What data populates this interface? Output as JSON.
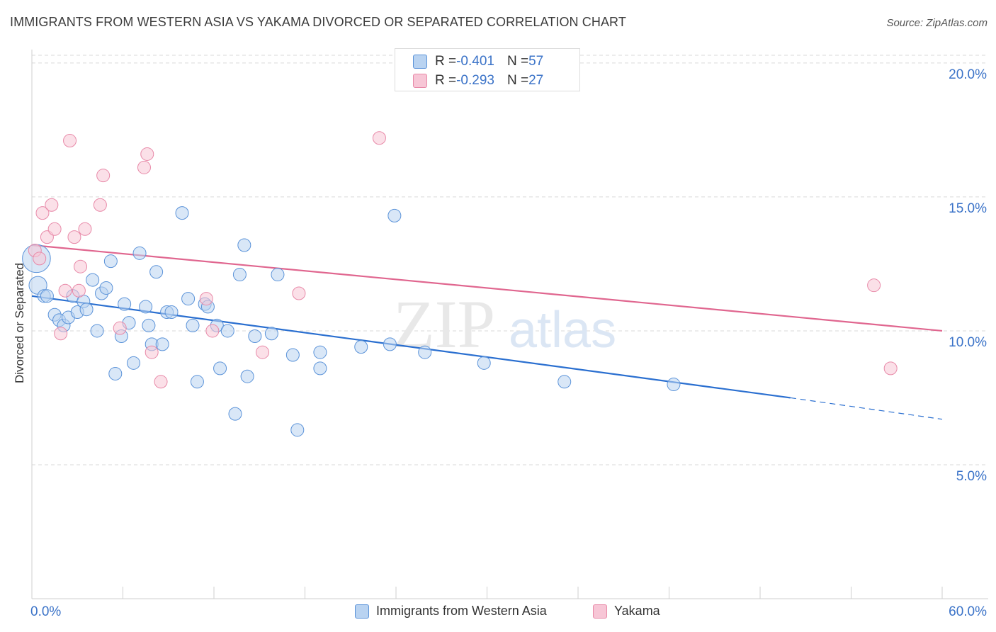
{
  "title": "IMMIGRANTS FROM WESTERN ASIA VS YAKAMA DIVORCED OR SEPARATED CORRELATION CHART",
  "source": "Source: ZipAtlas.com",
  "watermark": {
    "zip": "ZIP",
    "atlas": "atlas"
  },
  "colors": {
    "blue": "#5b93d9",
    "blue_fill": "#b9d3f1",
    "blue_line": "#2a6fd0",
    "pink": "#e889a8",
    "pink_fill": "#f7c6d6",
    "pink_line": "#e0668f",
    "tick_text": "#3b73c8",
    "grid": "#d9d9d9"
  },
  "stats": [
    {
      "r_label": "R = ",
      "r_value": "-0.401",
      "n_label": "N = ",
      "n_value": "57",
      "color": "blue"
    },
    {
      "r_label": "R = ",
      "r_value": "-0.293",
      "n_label": "N = ",
      "n_value": "27",
      "color": "pink"
    }
  ],
  "legend": [
    {
      "label": "Immigrants from Western Asia",
      "color": "blue"
    },
    {
      "label": "Yakama",
      "color": "pink"
    }
  ],
  "chart_data": {
    "type": "scatter",
    "title": "IMMIGRANTS FROM WESTERN ASIA VS YAKAMA DIVORCED OR SEPARATED CORRELATION CHART",
    "xlabel": "",
    "ylabel": "Divorced or Separated",
    "xlim": [
      0,
      60
    ],
    "ylim": [
      0,
      20.5
    ],
    "x_tick_labels": [
      "0.0%",
      "60.0%"
    ],
    "y_ticks": [
      5,
      10,
      15,
      20
    ],
    "y_tick_labels": [
      "5.0%",
      "10.0%",
      "15.0%",
      "20.0%"
    ],
    "grid": "horizontal dashed",
    "legend_position": "bottom",
    "series": [
      {
        "name": "Immigrants from Western Asia",
        "color": "blue",
        "points": [
          [
            0.3,
            12.7,
            2.2
          ],
          [
            0.4,
            11.7,
            1.4
          ],
          [
            0.8,
            11.3,
            1
          ],
          [
            1.0,
            11.3,
            1
          ],
          [
            1.5,
            10.6,
            1
          ],
          [
            1.8,
            10.4,
            1
          ],
          [
            2.1,
            10.2,
            1
          ],
          [
            2.4,
            10.5,
            1
          ],
          [
            2.7,
            11.3,
            1
          ],
          [
            3.0,
            10.7,
            1
          ],
          [
            3.4,
            11.1,
            1
          ],
          [
            3.6,
            10.8,
            1
          ],
          [
            4.0,
            11.9,
            1
          ],
          [
            4.3,
            10.0,
            1
          ],
          [
            4.6,
            11.4,
            1
          ],
          [
            4.9,
            11.6,
            1
          ],
          [
            5.2,
            12.6,
            1
          ],
          [
            5.5,
            8.4,
            1
          ],
          [
            5.9,
            9.8,
            1
          ],
          [
            6.1,
            11.0,
            1
          ],
          [
            6.4,
            10.3,
            1
          ],
          [
            6.7,
            8.8,
            1
          ],
          [
            7.1,
            12.9,
            1
          ],
          [
            7.5,
            10.9,
            1
          ],
          [
            7.7,
            10.2,
            1
          ],
          [
            7.9,
            9.5,
            1
          ],
          [
            8.2,
            12.2,
            1
          ],
          [
            8.6,
            9.5,
            1
          ],
          [
            8.9,
            10.7,
            1
          ],
          [
            9.2,
            10.7,
            1
          ],
          [
            9.9,
            14.4,
            1
          ],
          [
            10.3,
            11.2,
            1
          ],
          [
            10.6,
            10.2,
            1
          ],
          [
            10.9,
            8.1,
            1
          ],
          [
            11.4,
            11.0,
            1
          ],
          [
            11.6,
            10.9,
            1
          ],
          [
            12.2,
            10.2,
            1
          ],
          [
            12.4,
            8.6,
            1
          ],
          [
            12.9,
            10.0,
            1
          ],
          [
            13.4,
            6.9,
            1
          ],
          [
            13.7,
            12.1,
            1
          ],
          [
            14.0,
            13.2,
            1
          ],
          [
            14.2,
            8.3,
            1
          ],
          [
            14.7,
            9.8,
            1
          ],
          [
            15.8,
            9.9,
            1
          ],
          [
            16.2,
            12.1,
            1
          ],
          [
            17.2,
            9.1,
            1
          ],
          [
            17.5,
            6.3,
            1
          ],
          [
            19.0,
            9.2,
            1
          ],
          [
            19.0,
            8.6,
            1
          ],
          [
            21.7,
            9.4,
            1
          ],
          [
            23.6,
            9.5,
            1
          ],
          [
            23.9,
            14.3,
            1
          ],
          [
            25.9,
            9.2,
            1
          ],
          [
            29.8,
            8.8,
            1
          ],
          [
            35.1,
            8.1,
            1
          ],
          [
            42.3,
            8.0,
            1
          ]
        ],
        "trend": {
          "x0": 0,
          "y0": 11.3,
          "x1": 50,
          "y1": 7.5,
          "dashed_to_x": 60,
          "dashed_to_y": 6.7
        }
      },
      {
        "name": "Yakama",
        "color": "pink",
        "points": [
          [
            0.2,
            13.0,
            1
          ],
          [
            0.5,
            12.7,
            1
          ],
          [
            0.7,
            14.4,
            1
          ],
          [
            1.0,
            13.5,
            1
          ],
          [
            1.3,
            14.7,
            1
          ],
          [
            1.5,
            13.8,
            1
          ],
          [
            1.9,
            9.9,
            1
          ],
          [
            2.2,
            11.5,
            1
          ],
          [
            2.5,
            17.1,
            1
          ],
          [
            2.8,
            13.5,
            1
          ],
          [
            3.1,
            11.5,
            1
          ],
          [
            3.2,
            12.4,
            1
          ],
          [
            3.5,
            13.8,
            1
          ],
          [
            4.5,
            14.7,
            1
          ],
          [
            4.7,
            15.8,
            1
          ],
          [
            5.8,
            10.1,
            1
          ],
          [
            7.4,
            16.1,
            1
          ],
          [
            7.6,
            16.6,
            1
          ],
          [
            7.9,
            9.2,
            1
          ],
          [
            8.5,
            8.1,
            1
          ],
          [
            11.5,
            11.2,
            1
          ],
          [
            11.9,
            10.0,
            1
          ],
          [
            15.2,
            9.2,
            1
          ],
          [
            17.6,
            11.4,
            1
          ],
          [
            22.9,
            17.2,
            1
          ],
          [
            55.5,
            11.7,
            1
          ],
          [
            56.6,
            8.6,
            1
          ]
        ],
        "trend": {
          "x0": 0,
          "y0": 13.2,
          "x1": 60,
          "y1": 10.0
        }
      }
    ]
  }
}
